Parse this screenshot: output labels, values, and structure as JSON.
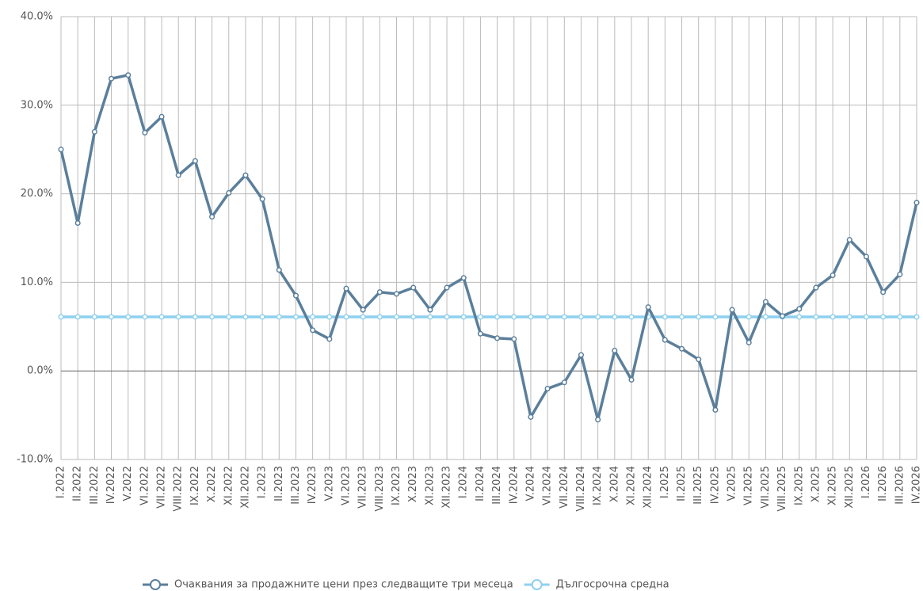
{
  "chart_data": {
    "type": "line",
    "categories": [
      "I.2022",
      "II.2022",
      "III.2022",
      "IV.2022",
      "V.2022",
      "VI.2022",
      "VII.2022",
      "VIII.2022",
      "IX.2022",
      "X.2022",
      "XI.2022",
      "XII.2022",
      "I.2023",
      "II.2023",
      "III.2023",
      "IV.2023",
      "V.2023",
      "VI.2023",
      "VII.2023",
      "VIII.2023",
      "IX.2023",
      "X.2023",
      "XI.2023",
      "XII.2023",
      "I.2024",
      "II.2024",
      "III.2024",
      "IV.2024",
      "V.2024",
      "VI.2024",
      "VII.2024",
      "VIII.2024",
      "IX.2024",
      "X.2024",
      "XI.2024",
      "XII.2024",
      "I.2025",
      "II.2025",
      "III.2025",
      "IV.2025",
      "V.2025",
      "VI.2025",
      "VII.2025",
      "VIII.2025",
      "IX.2025",
      "X.2025",
      "XI.2025",
      "XII.2025",
      "I.2026",
      "II.2026",
      "III.2026",
      "IV.2026"
    ],
    "series": [
      {
        "name": "Очаквания за продажните цени през следващите три месеца",
        "color": "#5b7f9b",
        "values": [
          25.0,
          16.7,
          27.0,
          33.0,
          33.4,
          26.9,
          28.7,
          22.1,
          23.7,
          17.4,
          20.1,
          22.1,
          19.4,
          11.4,
          8.5,
          4.6,
          3.6,
          9.3,
          6.9,
          8.9,
          8.7,
          9.4,
          6.9,
          9.4,
          10.5,
          4.2,
          3.7,
          3.6,
          -5.2,
          -2.0,
          -1.3,
          1.8,
          -5.5,
          2.3,
          -1.0,
          7.2,
          3.5,
          2.5,
          1.3,
          -4.4,
          6.9,
          3.2,
          7.8,
          6.2,
          7.0,
          9.4,
          10.8,
          14.8,
          12.9,
          8.9,
          10.9,
          19.0
        ]
      },
      {
        "name": "Дългосрочна средна",
        "color": "#8fd0ee",
        "values": [
          6.1,
          6.1,
          6.1,
          6.1,
          6.1,
          6.1,
          6.1,
          6.1,
          6.1,
          6.1,
          6.1,
          6.1,
          6.1,
          6.1,
          6.1,
          6.1,
          6.1,
          6.1,
          6.1,
          6.1,
          6.1,
          6.1,
          6.1,
          6.1,
          6.1,
          6.1,
          6.1,
          6.1,
          6.1,
          6.1,
          6.1,
          6.1,
          6.1,
          6.1,
          6.1,
          6.1,
          6.1,
          6.1,
          6.1,
          6.1,
          6.1,
          6.1,
          6.1,
          6.1,
          6.1,
          6.1,
          6.1,
          6.1,
          6.1,
          6.1,
          6.1,
          6.1
        ]
      }
    ],
    "ylim": [
      -10,
      40
    ],
    "yticks": [
      {
        "value": -10,
        "label": "-10.0%"
      },
      {
        "value": 0,
        "label": "0.0%"
      },
      {
        "value": 10,
        "label": "10.0%"
      },
      {
        "value": 20,
        "label": "20.0%"
      },
      {
        "value": 30,
        "label": "30.0%"
      },
      {
        "value": 40,
        "label": "40.0%"
      }
    ],
    "grid": true,
    "legend": "bottom"
  }
}
